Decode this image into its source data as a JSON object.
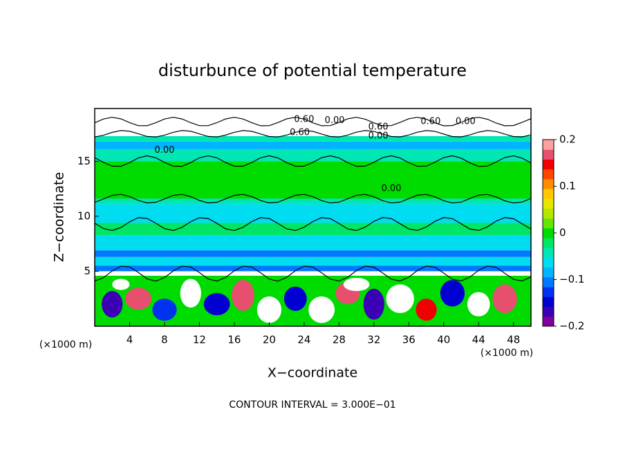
{
  "chart_data": {
    "type": "contour",
    "title": "disturbunce of potential temperature",
    "x_label": "X−coordinate",
    "y_label": "Z−coordinate",
    "x_unit_left": "(×1000 m)",
    "x_unit_right": "(×1000 m)",
    "footer": "CONTOUR INTERVAL = 3.000E−01",
    "xlim": [
      0,
      50
    ],
    "xticks": [
      4,
      8,
      12,
      16,
      20,
      24,
      28,
      32,
      36,
      40,
      44,
      48
    ],
    "ylim": [
      0,
      19.8
    ],
    "yticks": [
      5,
      10,
      15
    ],
    "clim": [
      -0.2,
      0.2
    ],
    "cticks": [
      {
        "value": 0.2,
        "label": "0.2"
      },
      {
        "value": 0.1,
        "label": "0.1"
      },
      {
        "value": 0,
        "label": "0"
      },
      {
        "value": -0.1,
        "label": "−0.1"
      },
      {
        "value": -0.2,
        "label": "−0.2"
      }
    ],
    "colors": [
      "#8000a0",
      "#3c00b4",
      "#0000d2",
      "#0032f0",
      "#0078ff",
      "#00b4ff",
      "#00dcf0",
      "#00e6b4",
      "#00e664",
      "#00dc00",
      "#64e600",
      "#b4e600",
      "#e6e600",
      "#ffc800",
      "#ff8c00",
      "#ff4600",
      "#f00000",
      "#e6506e",
      "#ffa0a0"
    ],
    "contour_labels": [
      {
        "text": "0.60",
        "x": 24,
        "y": 18.8
      },
      {
        "text": "0.00",
        "x": 27.5,
        "y": 18.7
      },
      {
        "text": "0.60",
        "x": 23.5,
        "y": 17.6
      },
      {
        "text": "0.00",
        "x": 8,
        "y": 16
      },
      {
        "text": "0.60",
        "x": 38.5,
        "y": 18.6
      },
      {
        "text": "0.00",
        "x": 42.5,
        "y": 18.6
      },
      {
        "text": "0.60",
        "x": 32.5,
        "y": 18.1
      },
      {
        "text": "0.00",
        "x": 32.5,
        "y": 17.3
      },
      {
        "text": "0.00",
        "x": 34,
        "y": 12.5
      }
    ]
  }
}
